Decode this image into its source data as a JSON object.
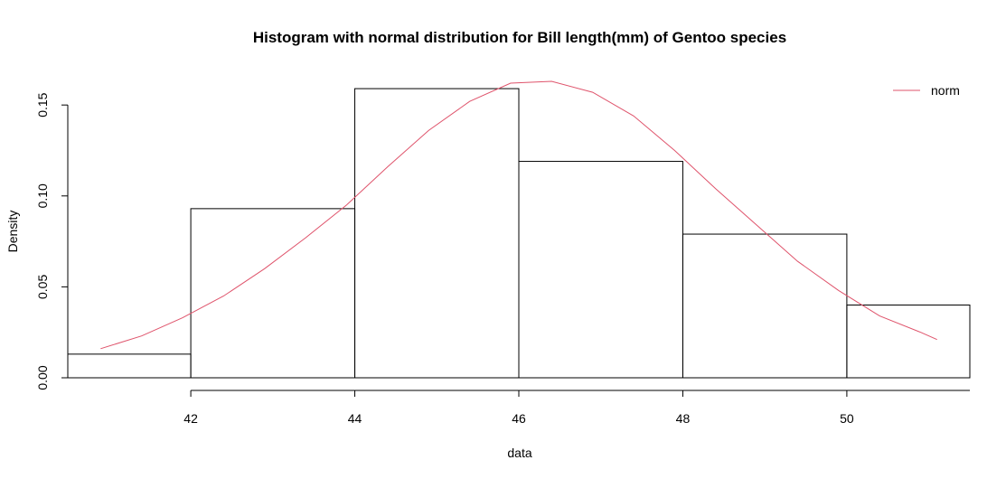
{
  "chart_data": {
    "type": "bar",
    "title": "Histogram with normal distribution for Bill length(mm) of Gentoo species",
    "xlabel": "data",
    "ylabel": "Density",
    "xlim": [
      40.5,
      51.5
    ],
    "ylim": [
      0,
      0.165
    ],
    "x_ticks": [
      "42",
      "44",
      "46",
      "48",
      "50"
    ],
    "y_ticks": [
      "0.00",
      "0.05",
      "0.10",
      "0.15"
    ],
    "bins": [
      {
        "from": 40.5,
        "to": 42,
        "density": 0.013
      },
      {
        "from": 42,
        "to": 44,
        "density": 0.093
      },
      {
        "from": 44,
        "to": 46,
        "density": 0.159
      },
      {
        "from": 46,
        "to": 48,
        "density": 0.119
      },
      {
        "from": 48,
        "to": 50,
        "density": 0.079
      },
      {
        "from": 50,
        "to": 51.5,
        "density": 0.04
      }
    ],
    "series": [
      {
        "name": "norm",
        "color": "#DF536B",
        "x": [
          40.9,
          41.4,
          41.9,
          42.4,
          42.9,
          43.4,
          43.9,
          44.4,
          44.9,
          45.4,
          45.9,
          46.4,
          46.9,
          47.4,
          47.9,
          48.4,
          48.9,
          49.4,
          49.9,
          50.4,
          50.9,
          51.1
        ],
        "y": [
          0.016,
          0.023,
          0.033,
          0.045,
          0.06,
          0.077,
          0.095,
          0.116,
          0.136,
          0.152,
          0.162,
          0.163,
          0.157,
          0.144,
          0.125,
          0.104,
          0.084,
          0.064,
          0.048,
          0.034,
          0.025,
          0.021
        ]
      }
    ],
    "legend": {
      "position": "top-right",
      "entries": [
        "norm"
      ]
    },
    "grid": false
  }
}
